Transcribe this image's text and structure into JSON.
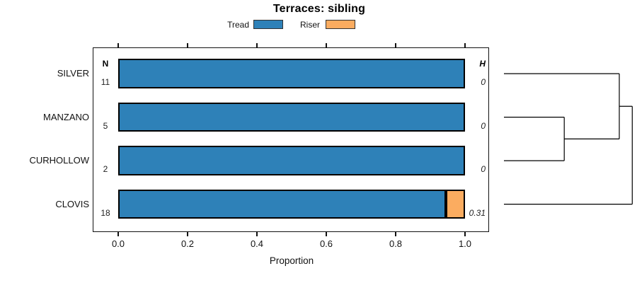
{
  "title": "Terraces: sibling",
  "legend": {
    "items": [
      {
        "label": "Tread",
        "color": "#2E81B8"
      },
      {
        "label": "Riser",
        "color": "#FBAC60"
      }
    ]
  },
  "columns": {
    "n_header": "N",
    "h_header": "H"
  },
  "axis": {
    "label": "Proportion",
    "tick_labels": [
      "0.0",
      "0.2",
      "0.4",
      "0.6",
      "0.8",
      "1.0"
    ]
  },
  "chart_data": {
    "type": "bar",
    "orientation": "horizontal",
    "stacked": true,
    "title": "Terraces: sibling",
    "xlabel": "Proportion",
    "xlim": [
      0,
      1
    ],
    "x_ticks": [
      0,
      0.2,
      0.4,
      0.6,
      0.8,
      1.0
    ],
    "grid": false,
    "legend_position": "top",
    "categories": [
      "SILVER",
      "MANZANO",
      "CURHOLLOW",
      "CLOVIS"
    ],
    "series": [
      {
        "name": "Tread",
        "color": "#2E81B8",
        "values": [
          1.0,
          1.0,
          1.0,
          0.944
        ]
      },
      {
        "name": "Riser",
        "color": "#FBAC60",
        "values": [
          0.0,
          0.0,
          0.0,
          0.056
        ]
      }
    ],
    "n_values": [
      "11",
      "5",
      "2",
      "18"
    ],
    "h_values": [
      "0",
      "0",
      "0",
      "0.31"
    ],
    "dendrogram": {
      "leaf_order": [
        "SILVER",
        "MANZANO",
        "CURHOLLOW",
        "CLOVIS"
      ],
      "merges": [
        {
          "a": {
            "leaf": 1
          },
          "b": {
            "leaf": 2
          },
          "h": 0.47
        },
        {
          "a": {
            "merge": 0
          },
          "b": {
            "leaf": 0
          },
          "h": 0.899
        },
        {
          "a": {
            "merge": 1
          },
          "b": {
            "leaf": 3
          },
          "h": 1.0
        }
      ]
    }
  }
}
